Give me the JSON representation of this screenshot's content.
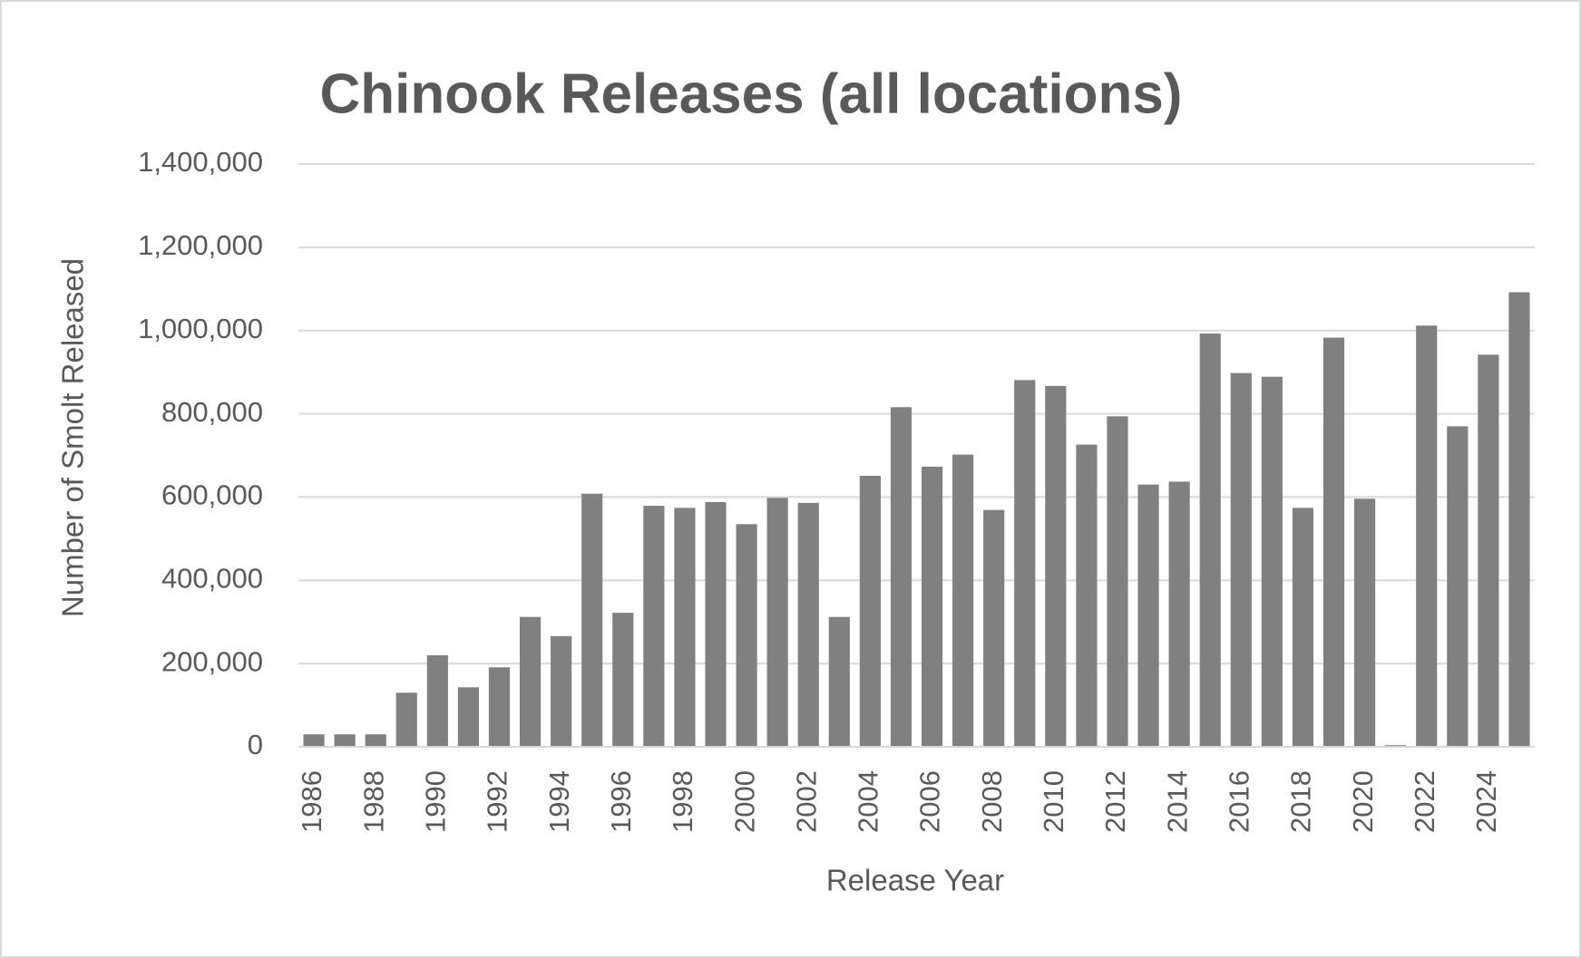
{
  "chart_data": {
    "type": "bar",
    "title": "Chinook Releases (all locations)",
    "x_label": "Release Year",
    "y_label": "Number of  Smolt  Released",
    "categories": [
      "1986",
      null,
      "1988",
      null,
      "1990",
      null,
      "1992",
      null,
      "1994",
      null,
      "1996",
      null,
      "1998",
      null,
      "2000",
      null,
      "2002",
      null,
      "2004",
      null,
      "2006",
      null,
      "2008",
      null,
      "2010",
      null,
      "2012",
      null,
      "2014",
      null,
      "2016",
      null,
      "2018",
      null,
      "2020",
      null,
      "2022",
      null,
      "2024",
      null
    ],
    "values": [
      30000,
      30000,
      30000,
      130000,
      220000,
      143000,
      191000,
      312000,
      266000,
      608000,
      322000,
      579000,
      574000,
      588000,
      535000,
      598000,
      586000,
      312000,
      651000,
      816000,
      673000,
      702000,
      569000,
      881000,
      867000,
      726000,
      794000,
      630000,
      637000,
      993000,
      898000,
      889000,
      574000,
      983000,
      596000,
      4000,
      1012000,
      770000,
      942000,
      1092000
    ],
    "color": "#808080",
    "ylim": [
      0,
      1400000
    ],
    "yticks": [
      0,
      {
        "value": 200000,
        "label": "200,000"
      },
      {
        "value": 400000,
        "label": "400,000"
      },
      {
        "value": 600000,
        "label": "600,000"
      },
      {
        "value": 800000,
        "label": "800,000"
      },
      {
        "value": 1000000,
        "label": "1,000,000"
      },
      {
        "value": 1200000,
        "label": "1,200,000"
      },
      {
        "value": 1400000,
        "label": "1,400,000"
      }
    ],
    "grid": true
  }
}
